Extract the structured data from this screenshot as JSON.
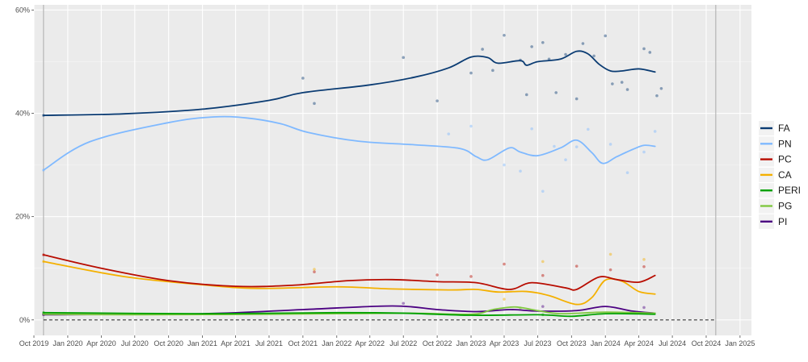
{
  "chart_data": {
    "type": "line",
    "title": "",
    "xlabel": "",
    "ylabel": "",
    "x_range": [
      "2019-10-01",
      "2025-02-01"
    ],
    "ylim": [
      -3,
      61
    ],
    "y_unit": "%",
    "grid": true,
    "legend_placement": "right",
    "reference_lines": {
      "vertical_dates": [
        "2019-10-27",
        "2024-10-27"
      ],
      "dashed_horizontal_y": 0
    },
    "x_ticks": [
      {
        "date": "2019-10-01",
        "label": "Oct 2019"
      },
      {
        "date": "2020-01-01",
        "label": "Jan 2020"
      },
      {
        "date": "2020-04-01",
        "label": "Apr 2020"
      },
      {
        "date": "2020-07-01",
        "label": "Jul 2020"
      },
      {
        "date": "2020-10-01",
        "label": "Oct 2020"
      },
      {
        "date": "2021-01-01",
        "label": "Jan 2021"
      },
      {
        "date": "2021-04-01",
        "label": "Apr 2021"
      },
      {
        "date": "2021-07-01",
        "label": "Jul 2021"
      },
      {
        "date": "2021-10-01",
        "label": "Oct 2021"
      },
      {
        "date": "2022-01-01",
        "label": "Jan 2022"
      },
      {
        "date": "2022-04-01",
        "label": "Apr 2022"
      },
      {
        "date": "2022-07-01",
        "label": "Jul 2022"
      },
      {
        "date": "2022-10-01",
        "label": "Oct 2022"
      },
      {
        "date": "2023-01-01",
        "label": "Jan 2023"
      },
      {
        "date": "2023-04-01",
        "label": "Apr 2023"
      },
      {
        "date": "2023-07-01",
        "label": "Jul 2023"
      },
      {
        "date": "2023-10-01",
        "label": "Oct 2023"
      },
      {
        "date": "2024-01-01",
        "label": "Jan 2024"
      },
      {
        "date": "2024-04-01",
        "label": "Apr 2024"
      },
      {
        "date": "2024-07-01",
        "label": "Jul 2024"
      },
      {
        "date": "2024-10-01",
        "label": "Oct 2024"
      },
      {
        "date": "2025-01-01",
        "label": "Jan 2025"
      }
    ],
    "y_ticks": [
      {
        "value": 0,
        "label": "0%"
      },
      {
        "value": 20,
        "label": "20%"
      },
      {
        "value": 40,
        "label": "40%"
      },
      {
        "value": 60,
        "label": "60%"
      }
    ],
    "series": [
      {
        "name": "FA",
        "color": "#0b3c73",
        "points": [
          [
            "2019-10-27",
            39.6
          ],
          [
            "2020-06-01",
            39.9
          ],
          [
            "2021-01-01",
            40.8
          ],
          [
            "2021-07-01",
            42.5
          ],
          [
            "2021-10-01",
            44.0
          ],
          [
            "2022-04-01",
            45.5
          ],
          [
            "2022-08-01",
            47.0
          ],
          [
            "2022-11-01",
            48.8
          ],
          [
            "2023-01-01",
            50.9
          ],
          [
            "2023-02-15",
            50.8
          ],
          [
            "2023-03-15",
            49.7
          ],
          [
            "2023-05-15",
            50.2
          ],
          [
            "2023-06-01",
            49.3
          ],
          [
            "2023-07-01",
            50.0
          ],
          [
            "2023-09-01",
            50.5
          ],
          [
            "2023-10-15",
            52.0
          ],
          [
            "2023-11-15",
            51.5
          ],
          [
            "2023-12-15",
            49.5
          ],
          [
            "2024-01-15",
            48.2
          ],
          [
            "2024-02-15",
            48.2
          ],
          [
            "2024-04-01",
            48.6
          ],
          [
            "2024-05-15",
            48.0
          ]
        ]
      },
      {
        "name": "PN",
        "color": "#7fb9ff",
        "points": [
          [
            "2019-10-27",
            29.0
          ],
          [
            "2020-03-01",
            34.5
          ],
          [
            "2020-10-01",
            38.2
          ],
          [
            "2021-02-01",
            39.3
          ],
          [
            "2021-05-01",
            39.1
          ],
          [
            "2021-08-01",
            38.0
          ],
          [
            "2021-10-15",
            36.3
          ],
          [
            "2022-03-01",
            34.6
          ],
          [
            "2022-08-01",
            33.9
          ],
          [
            "2022-12-01",
            33.2
          ],
          [
            "2023-01-15",
            31.6
          ],
          [
            "2023-02-15",
            31.0
          ],
          [
            "2023-04-15",
            33.3
          ],
          [
            "2023-05-15",
            32.5
          ],
          [
            "2023-07-01",
            31.8
          ],
          [
            "2023-09-01",
            33.3
          ],
          [
            "2023-10-15",
            34.8
          ],
          [
            "2023-11-25",
            32.4
          ],
          [
            "2023-12-25",
            30.3
          ],
          [
            "2024-02-01",
            31.6
          ],
          [
            "2024-03-15",
            33.0
          ],
          [
            "2024-04-15",
            33.8
          ],
          [
            "2024-05-15",
            33.6
          ]
        ]
      },
      {
        "name": "PC",
        "color": "#b80c00",
        "points": [
          [
            "2019-10-27",
            12.6
          ],
          [
            "2020-04-01",
            10.0
          ],
          [
            "2020-10-01",
            7.6
          ],
          [
            "2021-04-01",
            6.5
          ],
          [
            "2021-09-01",
            6.7
          ],
          [
            "2022-02-01",
            7.6
          ],
          [
            "2022-06-01",
            7.8
          ],
          [
            "2022-10-01",
            7.4
          ],
          [
            "2023-01-15",
            7.2
          ],
          [
            "2023-04-15",
            5.9
          ],
          [
            "2023-06-15",
            7.2
          ],
          [
            "2023-09-15",
            6.2
          ],
          [
            "2023-10-15",
            5.9
          ],
          [
            "2023-12-15",
            8.3
          ],
          [
            "2024-02-01",
            7.8
          ],
          [
            "2024-04-01",
            7.3
          ],
          [
            "2024-05-15",
            8.6
          ]
        ]
      },
      {
        "name": "CA",
        "color": "#f4b000",
        "points": [
          [
            "2019-10-27",
            11.3
          ],
          [
            "2020-06-01",
            8.4
          ],
          [
            "2021-01-01",
            6.8
          ],
          [
            "2021-06-01",
            6.1
          ],
          [
            "2022-01-01",
            6.4
          ],
          [
            "2022-06-01",
            6.0
          ],
          [
            "2022-11-01",
            5.8
          ],
          [
            "2023-01-15",
            5.9
          ],
          [
            "2023-03-15",
            5.4
          ],
          [
            "2023-06-01",
            5.5
          ],
          [
            "2023-08-01",
            4.7
          ],
          [
            "2023-10-15",
            3.0
          ],
          [
            "2023-11-25",
            4.3
          ],
          [
            "2024-01-01",
            7.7
          ],
          [
            "2024-02-15",
            7.5
          ],
          [
            "2024-04-01",
            5.5
          ],
          [
            "2024-05-15",
            5.0
          ]
        ]
      },
      {
        "name": "PERI",
        "color": "#00a000",
        "points": [
          [
            "2019-10-27",
            1.4
          ],
          [
            "2021-01-01",
            1.2
          ],
          [
            "2022-01-01",
            1.4
          ],
          [
            "2022-07-01",
            1.3
          ],
          [
            "2023-01-01",
            0.9
          ],
          [
            "2023-07-01",
            1.0
          ],
          [
            "2023-10-01",
            0.7
          ],
          [
            "2024-01-01",
            1.2
          ],
          [
            "2024-05-15",
            1.1
          ]
        ]
      },
      {
        "name": "PG",
        "color": "#80c840",
        "points": [
          [
            "2019-10-27",
            1.1
          ],
          [
            "2020-07-01",
            1.0
          ],
          [
            "2021-07-01",
            1.1
          ],
          [
            "2022-07-01",
            1.3
          ],
          [
            "2023-01-01",
            1.1
          ],
          [
            "2023-03-01",
            2.0
          ],
          [
            "2023-05-01",
            2.5
          ],
          [
            "2023-07-01",
            1.8
          ],
          [
            "2023-09-01",
            1.2
          ],
          [
            "2024-01-01",
            1.5
          ],
          [
            "2024-05-15",
            1.3
          ]
        ]
      },
      {
        "name": "PI",
        "color": "#4b0082",
        "points": [
          [
            "2019-10-27",
            1.0
          ],
          [
            "2021-01-01",
            1.2
          ],
          [
            "2021-10-01",
            2.0
          ],
          [
            "2022-06-01",
            2.7
          ],
          [
            "2022-10-01",
            2.0
          ],
          [
            "2023-01-15",
            1.6
          ],
          [
            "2023-04-15",
            2.0
          ],
          [
            "2023-07-01",
            1.7
          ],
          [
            "2023-10-15",
            1.8
          ],
          [
            "2024-01-01",
            2.6
          ],
          [
            "2024-03-15",
            1.7
          ],
          [
            "2024-05-15",
            1.3
          ]
        ]
      }
    ],
    "poll_points": {
      "FA": [
        [
          "2019-10-27",
          39.6
        ],
        [
          "2021-10-01",
          46.8
        ],
        [
          "2021-11-01",
          41.9
        ],
        [
          "2022-07-01",
          50.8
        ],
        [
          "2022-10-01",
          42.4
        ],
        [
          "2023-01-01",
          47.8
        ],
        [
          "2023-02-01",
          52.4
        ],
        [
          "2023-03-01",
          48.3
        ],
        [
          "2023-04-01",
          55.1
        ],
        [
          "2023-05-15",
          50.3
        ],
        [
          "2023-06-01",
          43.6
        ],
        [
          "2023-06-15",
          52.9
        ],
        [
          "2023-07-15",
          53.7
        ],
        [
          "2023-08-01",
          50.5
        ],
        [
          "2023-08-20",
          44.0
        ],
        [
          "2023-09-15",
          51.4
        ],
        [
          "2023-10-15",
          42.8
        ],
        [
          "2023-11-01",
          53.5
        ],
        [
          "2023-12-01",
          51.1
        ],
        [
          "2024-01-01",
          55.0
        ],
        [
          "2024-01-20",
          45.7
        ],
        [
          "2024-02-15",
          46.0
        ],
        [
          "2024-03-01",
          44.6
        ],
        [
          "2024-04-15",
          52.5
        ],
        [
          "2024-05-01",
          51.8
        ],
        [
          "2024-05-20",
          43.4
        ],
        [
          "2024-06-01",
          44.8
        ]
      ],
      "PN": [
        [
          "2019-10-27",
          29.0
        ],
        [
          "2022-11-01",
          36.0
        ],
        [
          "2023-01-01",
          37.5
        ],
        [
          "2023-04-01",
          30.0
        ],
        [
          "2023-05-15",
          28.8
        ],
        [
          "2023-06-15",
          37.0
        ],
        [
          "2023-07-15",
          24.9
        ],
        [
          "2023-08-15",
          33.6
        ],
        [
          "2023-09-15",
          31.0
        ],
        [
          "2023-10-15",
          33.5
        ],
        [
          "2023-11-15",
          36.9
        ],
        [
          "2024-01-15",
          34.0
        ],
        [
          "2024-03-01",
          28.5
        ],
        [
          "2024-04-15",
          32.5
        ],
        [
          "2024-05-15",
          36.5
        ]
      ],
      "PC": [
        [
          "2019-10-27",
          12.6
        ],
        [
          "2021-11-01",
          9.3
        ],
        [
          "2022-10-01",
          8.7
        ],
        [
          "2023-01-01",
          8.4
        ],
        [
          "2023-04-01",
          10.8
        ],
        [
          "2023-07-15",
          8.6
        ],
        [
          "2023-10-15",
          10.4
        ],
        [
          "2024-01-15",
          9.7
        ],
        [
          "2024-04-15",
          10.3
        ]
      ],
      "CA": [
        [
          "2019-10-27",
          11.3
        ],
        [
          "2021-11-01",
          9.8
        ],
        [
          "2023-04-01",
          4.0
        ],
        [
          "2023-07-15",
          11.3
        ],
        [
          "2024-01-15",
          12.7
        ],
        [
          "2024-04-15",
          11.7
        ]
      ],
      "PERI": [
        [
          "2019-10-27",
          1.4
        ],
        [
          "2023-07-15",
          1.0
        ],
        [
          "2024-04-15",
          1.3
        ]
      ],
      "PG": [
        [
          "2019-10-27",
          1.1
        ],
        [
          "2023-05-15",
          2.3
        ]
      ],
      "PI": [
        [
          "2019-10-27",
          1.0
        ],
        [
          "2022-07-01",
          3.2
        ],
        [
          "2023-07-15",
          2.6
        ],
        [
          "2024-04-15",
          2.4
        ]
      ]
    }
  }
}
